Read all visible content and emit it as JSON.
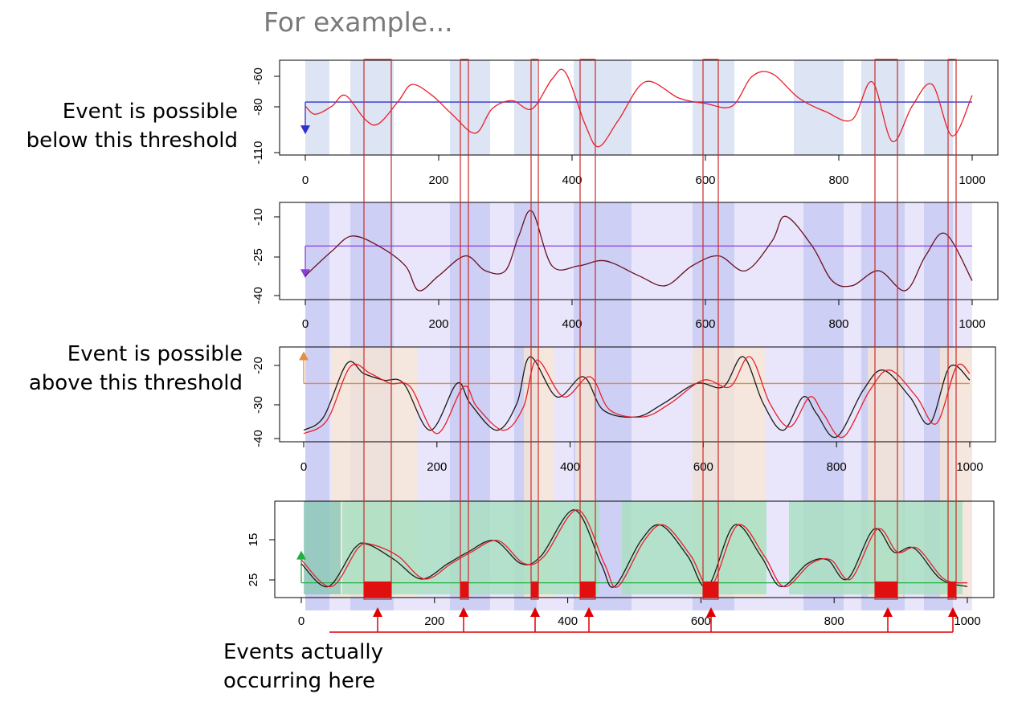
{
  "title": "For example...",
  "annotations": {
    "below": [
      "Event is possible",
      "below this threshold"
    ],
    "above": [
      "Event is possible",
      "above this threshold"
    ],
    "actual": [
      "Events actually",
      "occurring here"
    ]
  },
  "colors": {
    "blue_band": "#dde4f3",
    "purple_band": "#e7e3fb",
    "overlap_band": "#c9caf2",
    "orange_band": "#f8e7d4",
    "green_band": "#a9dfc2",
    "green_dark": "#8fc9b9",
    "event_box": "#cc2a2a",
    "event_fill": "#e01010",
    "arrow": "#e00000",
    "series_red": "#e8202a",
    "series_black": "#1a1a1a",
    "threshold_blue": "#3030d0",
    "threshold_purple": "#8a40e0",
    "threshold_orange": "#e09040",
    "threshold_green": "#20b040"
  },
  "chart_data": [
    {
      "type": "line",
      "xlim": [
        0,
        1000
      ],
      "ylim": [
        -110,
        -50
      ],
      "xticks": [
        0,
        200,
        400,
        600,
        800,
        1000
      ],
      "yticks": [
        -60,
        -80,
        -110
      ],
      "threshold": -75,
      "threshold_direction": "below",
      "series": [
        {
          "values": [
            [
              0,
              -78
            ],
            [
              15,
              -84
            ],
            [
              40,
              -78
            ],
            [
              60,
              -70
            ],
            [
              90,
              -88
            ],
            [
              110,
              -91
            ],
            [
              140,
              -74
            ],
            [
              160,
              -62
            ],
            [
              190,
              -70
            ],
            [
              220,
              -84
            ],
            [
              255,
              -98
            ],
            [
              280,
              -80
            ],
            [
              310,
              -74
            ],
            [
              340,
              -80
            ],
            [
              370,
              -58
            ],
            [
              390,
              -53
            ],
            [
              420,
              -92
            ],
            [
              440,
              -108
            ],
            [
              470,
              -88
            ],
            [
              510,
              -60
            ],
            [
              560,
              -72
            ],
            [
              600,
              -76
            ],
            [
              640,
              -78
            ],
            [
              670,
              -56
            ],
            [
              700,
              -54
            ],
            [
              740,
              -72
            ],
            [
              780,
              -82
            ],
            [
              820,
              -88
            ],
            [
              850,
              -60
            ],
            [
              880,
              -104
            ],
            [
              910,
              -78
            ],
            [
              940,
              -62
            ],
            [
              970,
              -100
            ],
            [
              1000,
              -70
            ]
          ]
        }
      ]
    },
    {
      "type": "line",
      "xlim": [
        0,
        1000
      ],
      "ylim": [
        -40,
        -5
      ],
      "xticks": [
        0,
        200,
        400,
        600,
        800,
        1000
      ],
      "yticks": [
        -10,
        -25,
        -40
      ],
      "threshold": -20,
      "threshold_direction": "below",
      "series": [
        {
          "values": [
            [
              0,
              -32
            ],
            [
              40,
              -22
            ],
            [
              70,
              -16
            ],
            [
              110,
              -20
            ],
            [
              150,
              -28
            ],
            [
              170,
              -38
            ],
            [
              200,
              -32
            ],
            [
              240,
              -24
            ],
            [
              270,
              -30
            ],
            [
              300,
              -30
            ],
            [
              320,
              -16
            ],
            [
              340,
              -6
            ],
            [
              370,
              -28
            ],
            [
              410,
              -28
            ],
            [
              450,
              -26
            ],
            [
              500,
              -32
            ],
            [
              540,
              -36
            ],
            [
              580,
              -28
            ],
            [
              620,
              -24
            ],
            [
              660,
              -30
            ],
            [
              700,
              -18
            ],
            [
              720,
              -8
            ],
            [
              760,
              -20
            ],
            [
              790,
              -34
            ],
            [
              820,
              -36
            ],
            [
              860,
              -30
            ],
            [
              900,
              -38
            ],
            [
              930,
              -24
            ],
            [
              960,
              -15
            ],
            [
              1000,
              -34
            ]
          ]
        }
      ]
    },
    {
      "type": "line",
      "xlim": [
        0,
        1000
      ],
      "ylim": [
        -40,
        -15
      ],
      "xticks": [
        0,
        200,
        400,
        600,
        800,
        1000
      ],
      "yticks": [
        -20,
        -30,
        -40
      ],
      "threshold": -24,
      "threshold_direction": "above",
      "series": [
        {
          "values": [
            [
              0,
              -38
            ],
            [
              30,
              -34
            ],
            [
              65,
              -18
            ],
            [
              90,
              -21
            ],
            [
              120,
              -23
            ],
            [
              150,
              -24
            ],
            [
              190,
              -38
            ],
            [
              230,
              -24
            ],
            [
              250,
              -30
            ],
            [
              290,
              -38
            ],
            [
              320,
              -30
            ],
            [
              340,
              -16
            ],
            [
              380,
              -28
            ],
            [
              420,
              -22
            ],
            [
              450,
              -32
            ],
            [
              500,
              -34
            ],
            [
              540,
              -30
            ],
            [
              590,
              -24
            ],
            [
              630,
              -25
            ],
            [
              660,
              -16
            ],
            [
              690,
              -30
            ],
            [
              720,
              -38
            ],
            [
              750,
              -28
            ],
            [
              770,
              -33
            ],
            [
              800,
              -40
            ],
            [
              840,
              -26
            ],
            [
              870,
              -20
            ],
            [
              910,
              -28
            ],
            [
              940,
              -36
            ],
            [
              970,
              -19
            ],
            [
              1000,
              -23
            ]
          ]
        },
        {
          "values": [
            [
              0,
              -39
            ],
            [
              35,
              -35
            ],
            [
              70,
              -19
            ],
            [
              100,
              -21
            ],
            [
              130,
              -24
            ],
            [
              160,
              -25
            ],
            [
              200,
              -39
            ],
            [
              240,
              -25
            ],
            [
              260,
              -31
            ],
            [
              300,
              -38
            ],
            [
              330,
              -31
            ],
            [
              350,
              -17
            ],
            [
              390,
              -28
            ],
            [
              430,
              -22
            ],
            [
              460,
              -32
            ],
            [
              510,
              -34
            ],
            [
              550,
              -30
            ],
            [
              600,
              -23
            ],
            [
              640,
              -25
            ],
            [
              670,
              -16
            ],
            [
              700,
              -30
            ],
            [
              730,
              -37
            ],
            [
              760,
              -28
            ],
            [
              780,
              -33
            ],
            [
              810,
              -40
            ],
            [
              850,
              -26
            ],
            [
              880,
              -20
            ],
            [
              920,
              -28
            ],
            [
              950,
              -36
            ],
            [
              980,
              -19
            ],
            [
              1000,
              -21
            ]
          ]
        }
      ]
    },
    {
      "type": "line",
      "xlim": [
        0,
        1000
      ],
      "ylim": [
        12,
        35
      ],
      "xticks": [
        0,
        200,
        400,
        600,
        800,
        1000
      ],
      "yticks": [
        15,
        25
      ],
      "threshold": 15,
      "threshold_direction": "above",
      "series": [
        {
          "values": [
            [
              0,
              20
            ],
            [
              40,
              14
            ],
            [
              80,
              24
            ],
            [
              100,
              25
            ],
            [
              140,
              21
            ],
            [
              180,
              16
            ],
            [
              220,
              20
            ],
            [
              250,
              23
            ],
            [
              290,
              26
            ],
            [
              330,
              20
            ],
            [
              360,
              22
            ],
            [
              410,
              34
            ],
            [
              450,
              20
            ],
            [
              470,
              14
            ],
            [
              510,
              26
            ],
            [
              540,
              30
            ],
            [
              580,
              22
            ],
            [
              610,
              14
            ],
            [
              650,
              30
            ],
            [
              690,
              22
            ],
            [
              720,
              14
            ],
            [
              760,
              20
            ],
            [
              790,
              21
            ],
            [
              820,
              16
            ],
            [
              860,
              29
            ],
            [
              890,
              23
            ],
            [
              920,
              24
            ],
            [
              960,
              16
            ],
            [
              1000,
              14
            ]
          ]
        },
        {
          "values": [
            [
              0,
              21
            ],
            [
              45,
              14
            ],
            [
              85,
              24
            ],
            [
              105,
              25
            ],
            [
              145,
              22
            ],
            [
              185,
              16
            ],
            [
              225,
              20
            ],
            [
              255,
              23
            ],
            [
              295,
              26
            ],
            [
              335,
              20
            ],
            [
              365,
              22
            ],
            [
              415,
              34
            ],
            [
              455,
              20
            ],
            [
              475,
              14
            ],
            [
              515,
              26
            ],
            [
              545,
              30
            ],
            [
              585,
              22
            ],
            [
              615,
              14
            ],
            [
              655,
              30
            ],
            [
              695,
              22
            ],
            [
              725,
              14
            ],
            [
              765,
              20
            ],
            [
              795,
              21
            ],
            [
              825,
              16
            ],
            [
              865,
              29
            ],
            [
              895,
              23
            ],
            [
              925,
              24
            ],
            [
              965,
              16
            ],
            [
              1000,
              15
            ]
          ]
        }
      ]
    }
  ]
}
